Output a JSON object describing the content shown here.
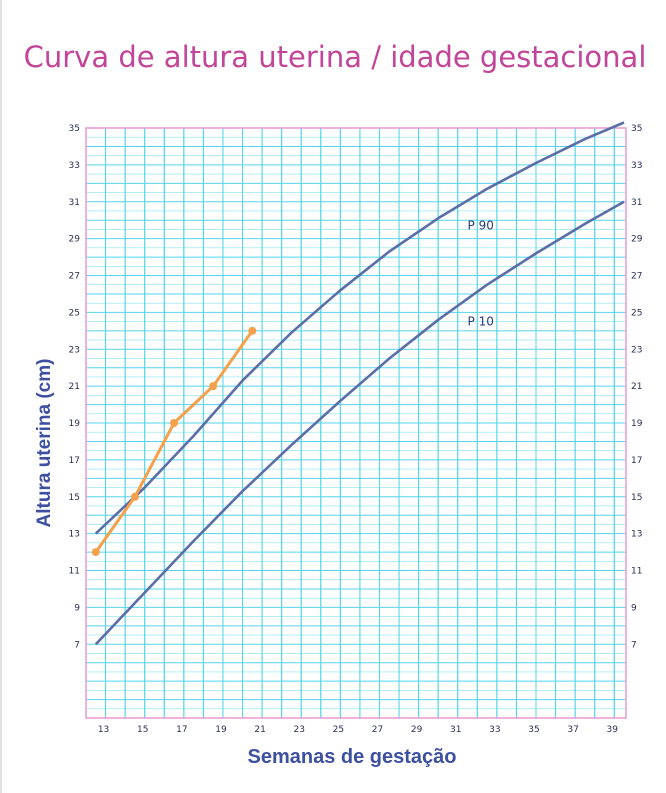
{
  "chart_data": {
    "type": "line",
    "title": "Curva de altura uterina / idade gestacional",
    "xlabel": "Semanas de gestação",
    "ylabel": "Altura uterina (cm)",
    "xlim": [
      12,
      39.6
    ],
    "ylim": [
      3,
      35
    ],
    "x_ticks": [
      13,
      15,
      17,
      19,
      21,
      23,
      25,
      27,
      29,
      31,
      33,
      35,
      37,
      39
    ],
    "y_ticks": [
      7,
      9,
      11,
      13,
      15,
      17,
      19,
      21,
      23,
      25,
      27,
      29,
      31,
      33,
      35
    ],
    "grid": true,
    "colors": {
      "title": "#c2459a",
      "axis_label": "#3c4fa0",
      "grid": "#56d4ec",
      "frame": "#e79ad0",
      "curves": "#5a6ea8",
      "patient": "#f5a04a"
    },
    "series": [
      {
        "name": "P 90",
        "x": [
          12.5,
          15,
          17.5,
          20,
          22.5,
          25,
          27.5,
          30,
          32.5,
          35,
          37.5,
          39.5
        ],
        "y": [
          13,
          15.5,
          18.3,
          21.3,
          23.9,
          26.2,
          28.3,
          30.1,
          31.7,
          33.1,
          34.4,
          35.3
        ]
      },
      {
        "name": "P 10",
        "x": [
          12.5,
          15,
          17.5,
          20,
          22.5,
          25,
          27.5,
          30,
          32.5,
          35,
          37.5,
          39.5
        ],
        "y": [
          7,
          9.8,
          12.6,
          15.3,
          17.8,
          20.2,
          22.5,
          24.6,
          26.5,
          28.2,
          29.8,
          31
        ]
      },
      {
        "x": [
          12.5,
          14.5,
          16.5,
          18.5,
          20.5
        ],
        "y": [
          12,
          15,
          19,
          21,
          24
        ]
      }
    ],
    "series_labels": {
      "p90": "P 90",
      "p10": "P 10"
    }
  }
}
